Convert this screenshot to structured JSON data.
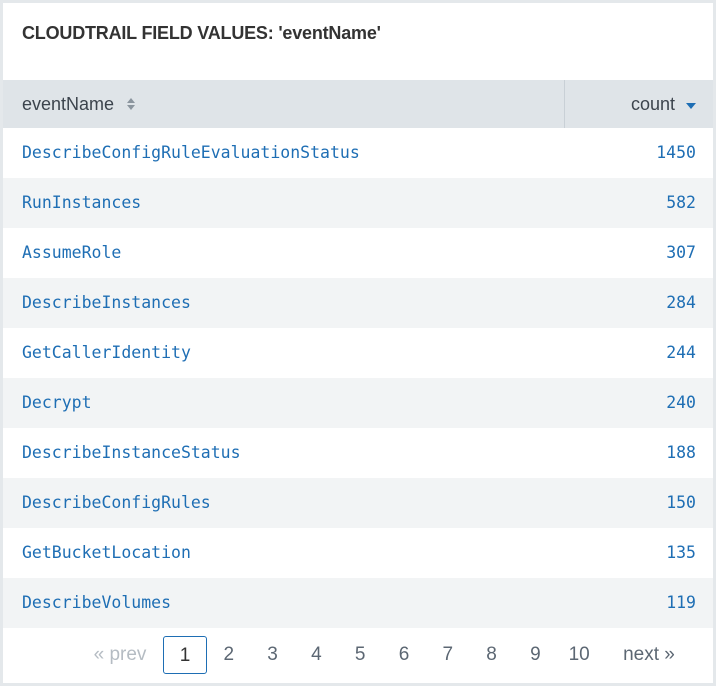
{
  "header": {
    "title": "CLOUDTRAIL FIELD VALUES: 'eventName'"
  },
  "table": {
    "columns": [
      "eventName",
      "count"
    ],
    "rows": [
      [
        "DescribeConfigRuleEvaluationStatus",
        1450
      ],
      [
        "RunInstances",
        582
      ],
      [
        "AssumeRole",
        307
      ],
      [
        "DescribeInstances",
        284
      ],
      [
        "GetCallerIdentity",
        244
      ],
      [
        "Decrypt",
        240
      ],
      [
        "DescribeInstanceStatus",
        188
      ],
      [
        "DescribeConfigRules",
        150
      ],
      [
        "GetBucketLocation",
        135
      ],
      [
        "DescribeVolumes",
        119
      ]
    ]
  },
  "pagination": {
    "prev": "« prev",
    "pages": [
      1,
      2,
      3,
      4,
      5,
      6,
      7,
      8,
      9,
      10
    ],
    "current_page": 1,
    "next": "next »"
  }
}
